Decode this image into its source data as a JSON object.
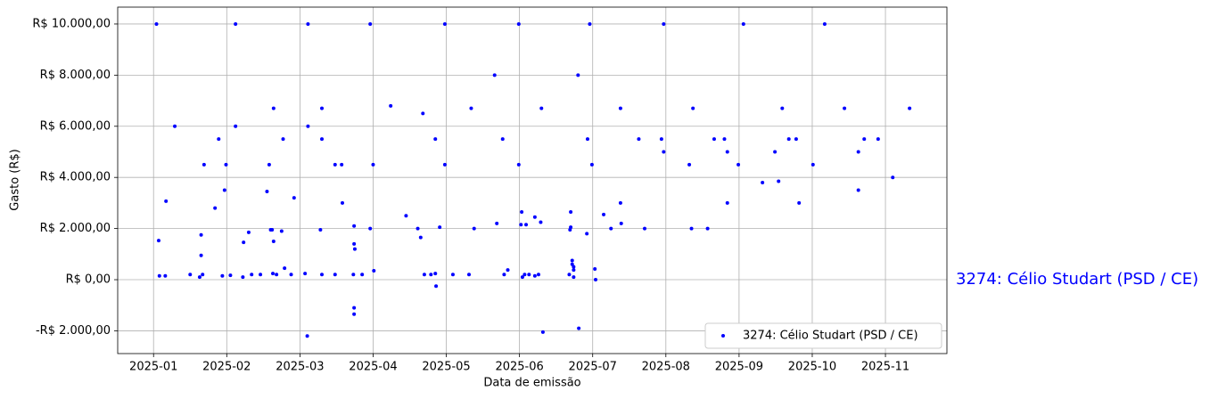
{
  "chart_data": {
    "type": "scatter",
    "x_label": "Data de emissão",
    "y_label": "Gasto (R$)",
    "annotation": "3274: Célio Studart (PSD / CE)",
    "x": [
      1.04,
      1.07,
      1.08,
      1.16,
      1.17,
      1.29,
      1.5,
      1.63,
      1.65,
      1.65,
      1.67,
      1.69,
      1.84,
      1.89,
      1.94,
      1.97,
      1.99,
      2.05,
      2.12,
      2.12,
      2.22,
      2.23,
      2.3,
      2.34,
      2.46,
      2.55,
      2.58,
      2.6,
      2.62,
      2.64,
      2.64,
      2.63,
      2.68,
      2.75,
      2.77,
      2.79,
      2.88,
      2.92,
      3.07,
      3.1,
      3.11,
      3.11,
      3.28,
      3.3,
      3.3,
      3.3,
      3.48,
      3.48,
      3.57,
      3.58,
      3.73,
      3.74,
      3.74,
      3.75,
      3.74,
      3.74,
      3.85,
      3.96,
      3.96,
      4.0,
      4.01,
      4.24,
      4.45,
      4.61,
      4.65,
      4.68,
      4.7,
      4.79,
      4.85,
      4.85,
      4.86,
      4.91,
      4.98,
      4.98,
      5.09,
      5.31,
      5.34,
      5.38,
      5.66,
      5.69,
      5.77,
      5.79,
      5.84,
      5.99,
      5.99,
      6.02,
      6.03,
      6.04,
      6.07,
      6.09,
      6.13,
      6.21,
      6.21,
      6.26,
      6.29,
      6.3,
      6.32,
      6.68,
      6.69,
      6.7,
      6.7,
      6.72,
      6.72,
      6.74,
      6.74,
      6.74,
      6.8,
      6.81,
      6.92,
      6.93,
      6.96,
      6.99,
      7.03,
      7.04,
      7.15,
      7.25,
      7.38,
      7.38,
      7.39,
      7.63,
      7.71,
      7.94,
      7.97,
      7.97,
      8.32,
      8.35,
      8.37,
      8.57,
      8.66,
      8.8,
      8.84,
      8.84,
      8.99,
      9.06,
      9.32,
      9.49,
      9.54,
      9.59,
      9.68,
      9.78,
      9.82,
      10.01,
      10.17,
      10.44,
      10.63,
      10.63,
      10.71,
      10.9,
      11.1,
      11.33
    ],
    "series": [
      {
        "name": "3274: Célio Studart (PSD / CE)",
        "color": "#0000ff",
        "values": [
          10000,
          1530,
          150,
          150,
          3070,
          6000,
          200,
          100,
          1750,
          950,
          200,
          4500,
          2800,
          5500,
          150,
          3500,
          4500,
          170,
          10000,
          6000,
          100,
          1460,
          1850,
          200,
          200,
          3450,
          4500,
          1950,
          1950,
          6700,
          1500,
          240,
          200,
          1900,
          5500,
          450,
          200,
          3200,
          240,
          -2200,
          10000,
          6000,
          1950,
          200,
          5500,
          6700,
          4500,
          200,
          4500,
          3000,
          200,
          2100,
          1400,
          1200,
          -1100,
          -1350,
          200,
          10000,
          2000,
          4500,
          350,
          6800,
          2500,
          2000,
          1650,
          6500,
          200,
          200,
          5500,
          240,
          -250,
          2050,
          10000,
          4500,
          200,
          200,
          6700,
          2000,
          8000,
          2200,
          5500,
          200,
          380,
          10000,
          4500,
          2150,
          2650,
          100,
          200,
          2150,
          200,
          2450,
          150,
          200,
          2250,
          6700,
          -2050,
          200,
          1950,
          2650,
          2050,
          750,
          600,
          500,
          380,
          100,
          8000,
          -1900,
          1800,
          5500,
          10000,
          4500,
          420,
          0,
          2550,
          2000,
          3000,
          6700,
          2200,
          5500,
          2000,
          5500,
          5000,
          10000,
          4500,
          2000,
          6700,
          2000,
          5500,
          5500,
          3000,
          5000,
          4500,
          10000,
          3800,
          5000,
          3850,
          6700,
          5500,
          5500,
          3000,
          4500,
          10000,
          6700,
          5000,
          3500,
          5500,
          5500,
          4000,
          6700
        ]
      }
    ],
    "xlim": [
      0.51,
      11.84
    ],
    "xticks": [
      {
        "value": 1,
        "label": "2025-01"
      },
      {
        "value": 2,
        "label": "2025-02"
      },
      {
        "value": 3,
        "label": "2025-03"
      },
      {
        "value": 4,
        "label": "2025-04"
      },
      {
        "value": 5,
        "label": "2025-05"
      },
      {
        "value": 6,
        "label": "2025-06"
      },
      {
        "value": 7,
        "label": "2025-07"
      },
      {
        "value": 8,
        "label": "2025-08"
      },
      {
        "value": 9,
        "label": "2025-09"
      },
      {
        "value": 10,
        "label": "2025-10"
      },
      {
        "value": 11,
        "label": "2025-11"
      }
    ],
    "ylim": [
      -2890,
      10660
    ],
    "yticks": [
      {
        "value": -2000,
        "label": "-R$ 2.000,00"
      },
      {
        "value": 0,
        "label": "R$ 0,00"
      },
      {
        "value": 2000,
        "label": "R$ 2.000,00"
      },
      {
        "value": 4000,
        "label": "R$ 4.000,00"
      },
      {
        "value": 6000,
        "label": "R$ 6.000,00"
      },
      {
        "value": 8000,
        "label": "R$ 8.000,00"
      },
      {
        "value": 10000,
        "label": "R$ 10.000,00"
      }
    ],
    "grid": true,
    "legend": "lower right"
  }
}
